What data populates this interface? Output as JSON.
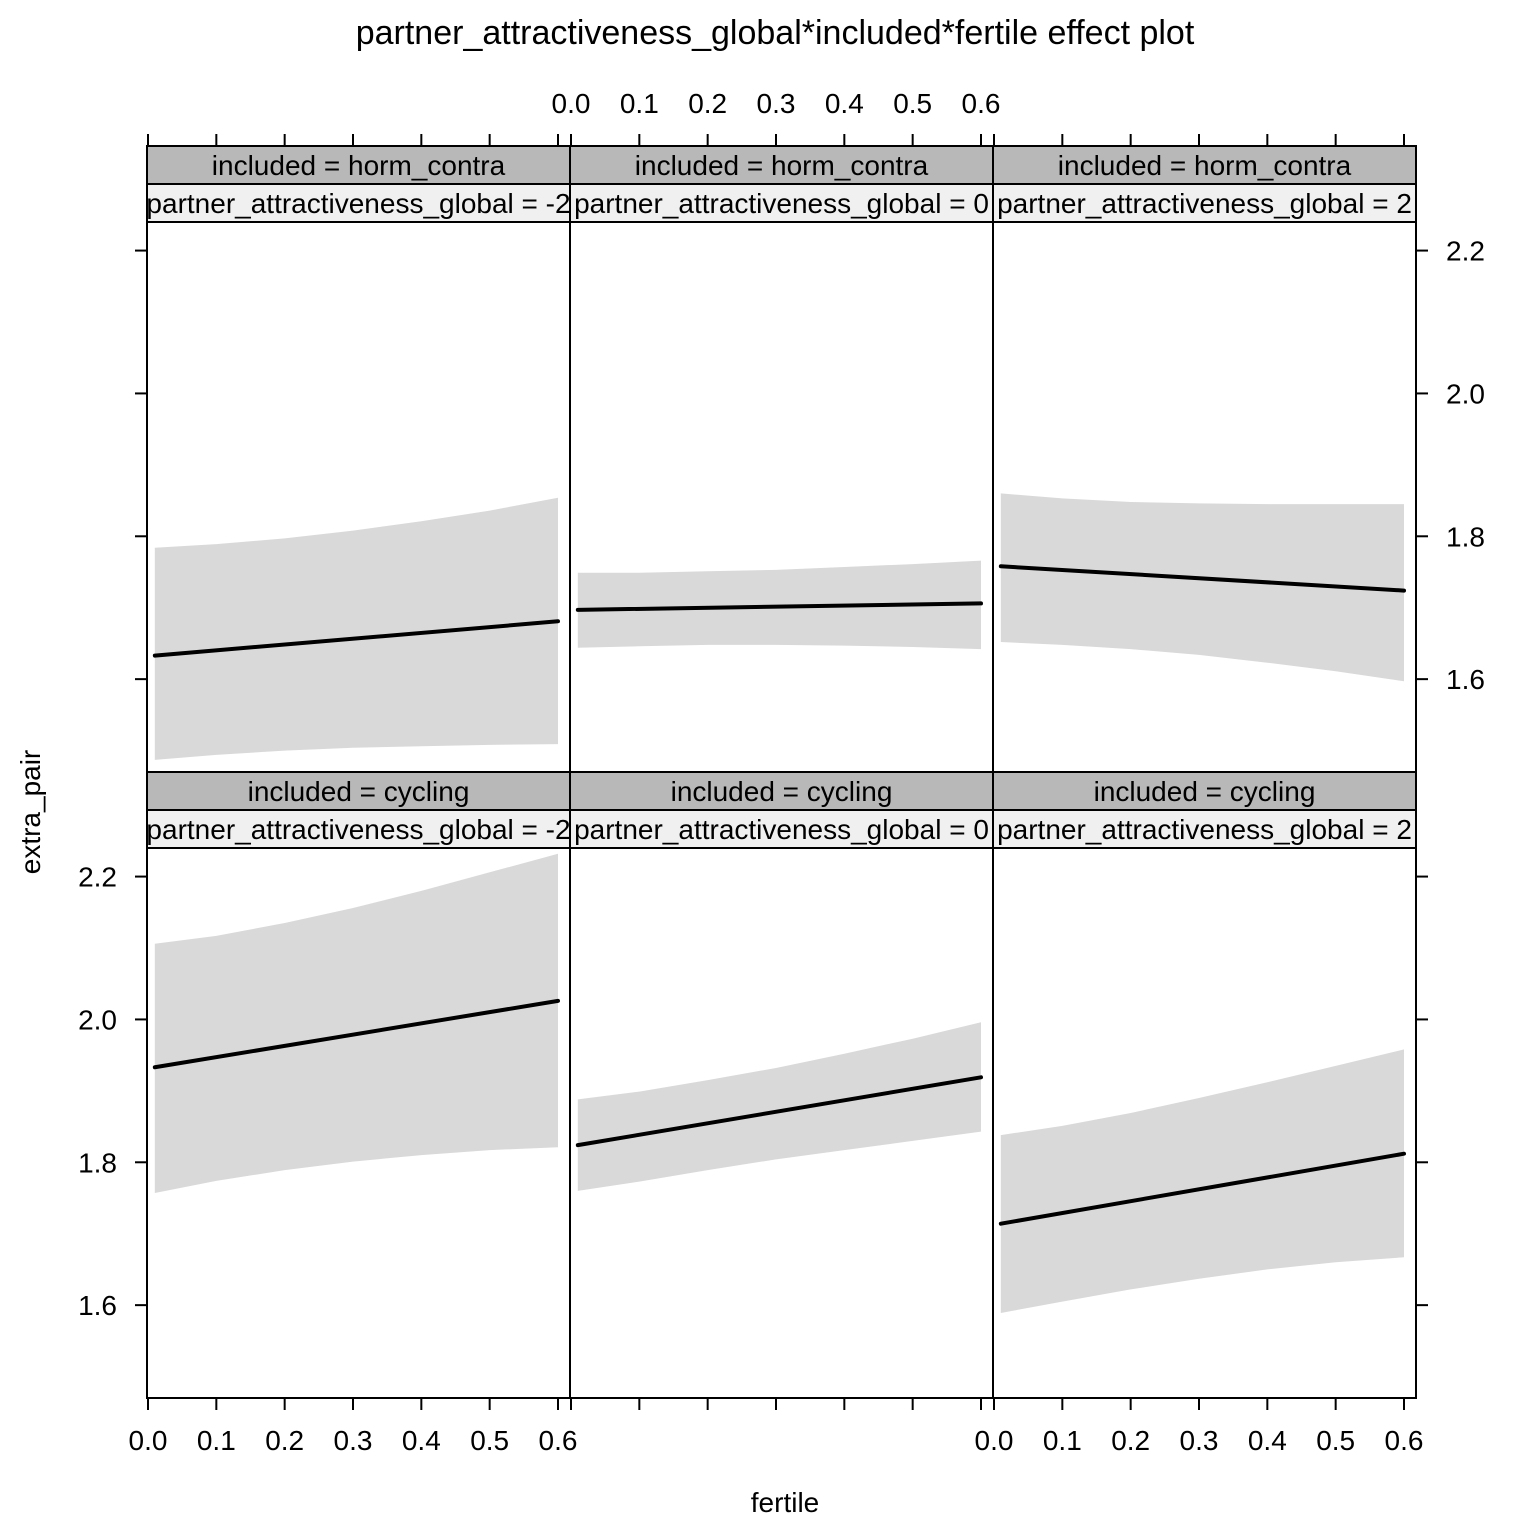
{
  "chart_data": {
    "type": "line",
    "title": "partner_attractiveness_global*included*fertile effect plot",
    "xlabel": "fertile",
    "ylabel": "extra_pair",
    "xlim": [
      0,
      0.6
    ],
    "ylim": [
      1.47,
      2.24
    ],
    "xticks": [
      0.0,
      0.1,
      0.2,
      0.3,
      0.4,
      0.5,
      0.6
    ],
    "xtick_labels": [
      "0.0",
      "0.1",
      "0.2",
      "0.3",
      "0.4",
      "0.5",
      "0.6"
    ],
    "yticks": [
      1.6,
      1.8,
      2.0,
      2.2
    ],
    "ytick_labels": [
      "1.6",
      "1.8",
      "2.0",
      "2.2"
    ],
    "colors": {
      "line": "#000000",
      "band": "#d9d9d9",
      "strip_top": "#b8b8b8",
      "strip_sub": "#f0f0f0"
    },
    "panels": [
      {
        "row": "top",
        "col": 0,
        "strip": "included = horm_contra",
        "substrip": "partner_attractiveness_global = -2",
        "x": [
          0.01,
          0.6
        ],
        "fit": [
          1.633,
          1.681
        ],
        "ci_x": [
          0.01,
          0.1,
          0.2,
          0.3,
          0.4,
          0.5,
          0.6
        ],
        "ci_upper": [
          1.784,
          1.789,
          1.797,
          1.808,
          1.821,
          1.836,
          1.854
        ],
        "ci_lower": [
          1.487,
          1.494,
          1.5,
          1.504,
          1.506,
          1.508,
          1.509
        ]
      },
      {
        "row": "top",
        "col": 1,
        "strip": "included = horm_contra",
        "substrip": "partner_attractiveness_global = 0",
        "x": [
          0.01,
          0.6
        ],
        "fit": [
          1.697,
          1.706
        ],
        "ci_x": [
          0.01,
          0.1,
          0.2,
          0.3,
          0.4,
          0.5,
          0.6
        ],
        "ci_upper": [
          1.749,
          1.749,
          1.751,
          1.753,
          1.757,
          1.761,
          1.766
        ],
        "ci_lower": [
          1.644,
          1.646,
          1.648,
          1.648,
          1.647,
          1.645,
          1.642
        ]
      },
      {
        "row": "top",
        "col": 2,
        "strip": "included = horm_contra",
        "substrip": "partner_attractiveness_global = 2",
        "x": [
          0.01,
          0.6
        ],
        "fit": [
          1.758,
          1.724
        ],
        "ci_x": [
          0.01,
          0.1,
          0.2,
          0.3,
          0.4,
          0.5,
          0.6
        ],
        "ci_upper": [
          1.86,
          1.853,
          1.848,
          1.846,
          1.845,
          1.845,
          1.845
        ],
        "ci_lower": [
          1.652,
          1.648,
          1.642,
          1.634,
          1.623,
          1.611,
          1.597
        ]
      },
      {
        "row": "bottom",
        "col": 0,
        "strip": "included = cycling",
        "substrip": "partner_attractiveness_global = -2",
        "x": [
          0.01,
          0.6
        ],
        "fit": [
          1.933,
          2.026
        ],
        "ci_x": [
          0.01,
          0.1,
          0.2,
          0.3,
          0.4,
          0.5,
          0.6
        ],
        "ci_upper": [
          2.106,
          2.117,
          2.135,
          2.156,
          2.18,
          2.206,
          2.232
        ],
        "ci_lower": [
          1.757,
          1.774,
          1.789,
          1.801,
          1.81,
          1.817,
          1.821
        ]
      },
      {
        "row": "bottom",
        "col": 1,
        "strip": "included = cycling",
        "substrip": "partner_attractiveness_global = 0",
        "x": [
          0.01,
          0.6
        ],
        "fit": [
          1.824,
          1.919
        ],
        "ci_x": [
          0.01,
          0.1,
          0.2,
          0.3,
          0.4,
          0.5,
          0.6
        ],
        "ci_upper": [
          1.888,
          1.899,
          1.915,
          1.932,
          1.952,
          1.973,
          1.996
        ],
        "ci_lower": [
          1.76,
          1.773,
          1.789,
          1.804,
          1.817,
          1.83,
          1.843
        ]
      },
      {
        "row": "bottom",
        "col": 2,
        "strip": "included = cycling",
        "substrip": "partner_attractiveness_global = 2",
        "x": [
          0.01,
          0.6
        ],
        "fit": [
          1.714,
          1.812
        ],
        "ci_x": [
          0.01,
          0.1,
          0.2,
          0.3,
          0.4,
          0.5,
          0.6
        ],
        "ci_upper": [
          1.838,
          1.851,
          1.869,
          1.89,
          1.912,
          1.935,
          1.958
        ],
        "ci_lower": [
          1.589,
          1.605,
          1.622,
          1.637,
          1.65,
          1.66,
          1.667
        ]
      }
    ]
  }
}
